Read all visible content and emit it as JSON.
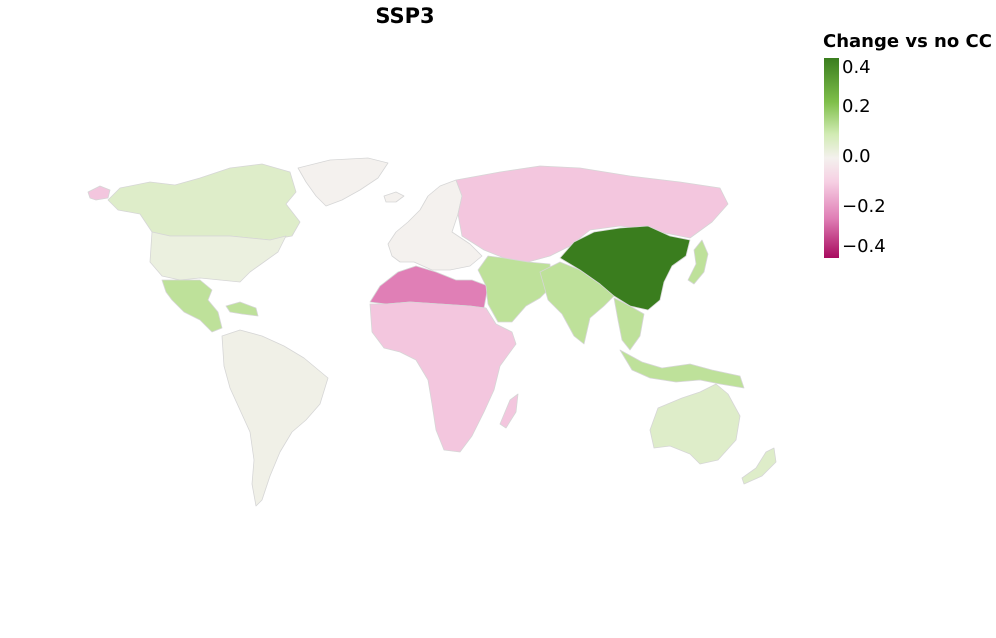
{
  "title": "SSP3",
  "legend": {
    "title": "Change vs no CC",
    "ticks": [
      "0.4",
      "0.2",
      "0.0",
      "−0.2",
      "−0.4"
    ],
    "colors": {
      "max": "#3a7d1e",
      "high": "#7fbf4a",
      "low_pos": "#d1ebb3",
      "neutral": "#f4f1ee",
      "low_neg": "#f6cfe3",
      "mid_neg": "#e07fb6",
      "min": "#a80a5e"
    }
  },
  "regions": [
    {
      "name": "North America",
      "value": 0.02
    },
    {
      "name": "Canada",
      "value": 0.05
    },
    {
      "name": "Greenland",
      "value": 0.0
    },
    {
      "name": "Alaska",
      "value": -0.1
    },
    {
      "name": "Mexico and Central America",
      "value": 0.12
    },
    {
      "name": "Caribbean",
      "value": 0.12
    },
    {
      "name": "South America",
      "value": 0.01
    },
    {
      "name": "Europe",
      "value": 0.0
    },
    {
      "name": "Iceland",
      "value": 0.0
    },
    {
      "name": "Russia and Central Asia",
      "value": -0.1
    },
    {
      "name": "North Africa",
      "value": -0.25
    },
    {
      "name": "Sub-Saharan Africa",
      "value": -0.1
    },
    {
      "name": "Madagascar",
      "value": -0.1
    },
    {
      "name": "Middle East",
      "value": 0.12
    },
    {
      "name": "South Asia",
      "value": 0.12
    },
    {
      "name": "China and Mongolia",
      "value": 0.45
    },
    {
      "name": "Japan",
      "value": 0.12
    },
    {
      "name": "Southeast Asia",
      "value": 0.12
    },
    {
      "name": "Australia",
      "value": 0.05
    },
    {
      "name": "New Zealand",
      "value": 0.05
    }
  ]
}
